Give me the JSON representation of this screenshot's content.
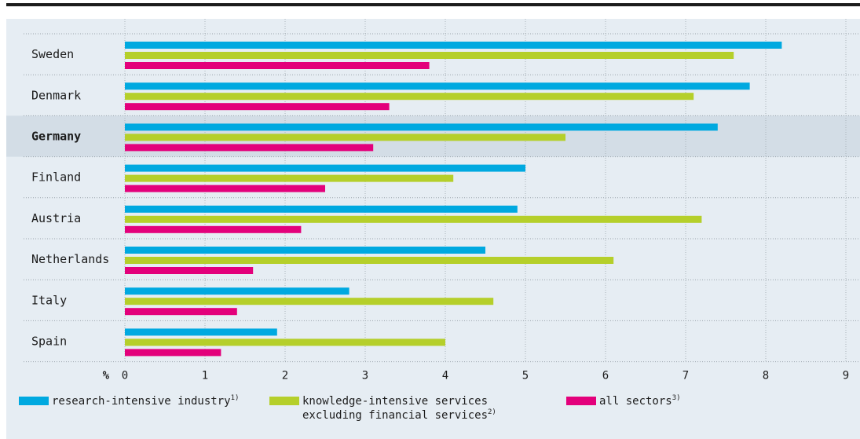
{
  "chart_data": {
    "type": "bar",
    "orientation": "horizontal",
    "categories": [
      "Sweden",
      "Denmark",
      "Germany",
      "Finland",
      "Austria",
      "Netherlands",
      "Italy",
      "Spain"
    ],
    "highlight_category": "Germany",
    "series": [
      {
        "key": "research",
        "name": "research-intensive industry",
        "note": "1)",
        "color": "#00a9e0",
        "values": [
          8.2,
          7.8,
          7.4,
          5.0,
          4.9,
          4.5,
          2.8,
          1.9
        ]
      },
      {
        "key": "knowledge",
        "name": "knowledge-intensive services excluding financial services",
        "name_lines": [
          "knowledge-intensive services",
          "excluding financial services"
        ],
        "note": "2)",
        "color": "#b5cf2a",
        "values": [
          7.6,
          7.1,
          5.5,
          4.1,
          7.2,
          6.1,
          4.6,
          4.0
        ]
      },
      {
        "key": "all",
        "name": "all sectors",
        "note": "3)",
        "color": "#e3007b",
        "values": [
          3.8,
          3.3,
          3.1,
          2.5,
          2.2,
          1.6,
          1.4,
          1.2
        ]
      }
    ],
    "unit_label": "%",
    "xlim": [
      0,
      9
    ],
    "xticks": [
      0,
      1,
      2,
      3,
      4,
      5,
      6,
      7,
      8,
      9
    ],
    "grid": true,
    "legend_position": "bottom"
  }
}
